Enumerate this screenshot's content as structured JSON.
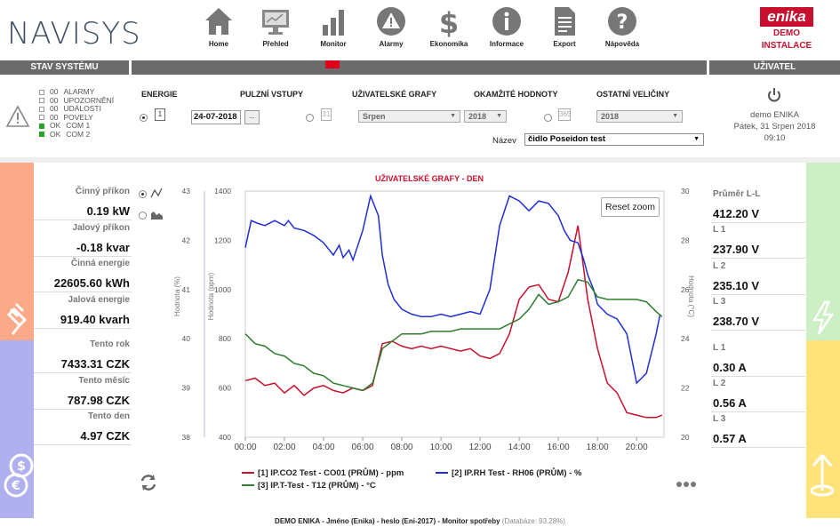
{
  "brand": {
    "logo": "NAVISYS",
    "badge": "enika",
    "demo_line1": "DEMO",
    "demo_line2": "INSTALACE"
  },
  "nav": [
    {
      "label": "Home",
      "icon": "home-icon"
    },
    {
      "label": "Přehled",
      "icon": "monitor-screen-icon"
    },
    {
      "label": "Monitor",
      "icon": "bar-chart-icon"
    },
    {
      "label": "Alarmy",
      "icon": "alarm-warning-icon"
    },
    {
      "label": "Ekonomika",
      "icon": "dollar-icon"
    },
    {
      "label": "Informace",
      "icon": "info-icon"
    },
    {
      "label": "Export",
      "icon": "document-icon"
    },
    {
      "label": "Nápověda",
      "icon": "help-icon"
    }
  ],
  "headers": {
    "system": "STAV SYSTÉMU",
    "user": "UŽIVATEL"
  },
  "status": [
    {
      "state": "00",
      "label": "ALARMY",
      "on": false
    },
    {
      "state": "00",
      "label": "UPOZORNĚNÍ",
      "on": false
    },
    {
      "state": "00",
      "label": "UDÁLOSTI",
      "on": false
    },
    {
      "state": "00",
      "label": "POVELY",
      "on": false
    },
    {
      "state": "OK",
      "label": "COM 1",
      "on": true
    },
    {
      "state": "OK",
      "label": "COM 2",
      "on": true
    }
  ],
  "controls": {
    "h_energie": "ENERGIE",
    "h_pulzni": "PULZNÍ VSTUPY",
    "h_uziv": "UŽIVATELSKÉ GRAFY",
    "h_okamzite": "OKAMŽITÉ HODNOTY",
    "h_ostatni": "OSTATNÍ VELIČINY",
    "cal_day": "1",
    "cal_month": "31",
    "cal_year": "365",
    "date": "24-07-2018",
    "date_btn": "...",
    "month": "Srpen",
    "year1": "2018",
    "year2": "2018",
    "nazev_label": "Název",
    "nazev_value": "čidlo Poseidon test"
  },
  "user": {
    "name": "demo ENIKA",
    "date": "Pátek, 31 Srpen 2018",
    "time": "09:10"
  },
  "left_panel": [
    {
      "label": "Činný příkon",
      "value": "0.19 kW"
    },
    {
      "label": "Jalový příkon",
      "value": "-0.18 kvar"
    },
    {
      "label": "Činná energie",
      "value": "22605.60 kWh"
    },
    {
      "label": "Jalová energie",
      "value": "919.40 kvarh"
    },
    {
      "label": "Tento rok",
      "value": "7433.31 CZK"
    },
    {
      "label": "Tento měsíc",
      "value": "787.98 CZK"
    },
    {
      "label": "Tento den",
      "value": "4.97 CZK"
    }
  ],
  "right_panel": [
    {
      "label": "Průměr L-L",
      "value": "412.20 V"
    },
    {
      "label": "L 1",
      "value": "237.90 V"
    },
    {
      "label": "L 2",
      "value": "235.10 V"
    },
    {
      "label": "L 3",
      "value": "238.70 V"
    },
    {
      "label": "L 1",
      "value": "0.30 A"
    },
    {
      "label": "L 2",
      "value": "0.56 A"
    },
    {
      "label": "L 3",
      "value": "0.57 A"
    }
  ],
  "colors": {
    "orange": "#fca98a",
    "lavender": "#b0b0ee",
    "green": "#ccefc4",
    "yellow": "#ffe27a",
    "red": "#c8102e",
    "blue": "#1f2fd6",
    "dkgreen": "#2f7d2f"
  },
  "chart_data": {
    "type": "line",
    "title": "UŽIVATELSKÉ GRAFY - DEN",
    "reset_label": "Reset zoom",
    "x_ticks": [
      "00:00",
      "02:00",
      "04:00",
      "06:00",
      "08:00",
      "10:00",
      "12:00",
      "14:00",
      "16:00",
      "18:00",
      "20:00"
    ],
    "xlim": [
      0,
      21.4
    ],
    "axes": {
      "hodnota": {
        "label": "Hodnota (%)",
        "ticks": [
          "38",
          "39",
          "40",
          "41",
          "42",
          "43"
        ],
        "range": [
          38,
          43
        ]
      },
      "ppm": {
        "label": "Hodnota (ppm)",
        "ticks": [
          "400",
          "600",
          "800",
          "1000",
          "1200",
          "1400"
        ],
        "range": [
          400,
          1400
        ]
      },
      "c": {
        "label": "Hodnota (°C)",
        "ticks": [
          "20",
          "22",
          "24",
          "26",
          "28",
          "30"
        ],
        "range": [
          20,
          30
        ]
      }
    },
    "series": [
      {
        "name": "[1] IP.CO2 Test - CO01 (PRŮM) - ppm",
        "color": "#c8102e",
        "axis": "ppm",
        "x": [
          0,
          0.5,
          1,
          1.5,
          2,
          2.5,
          3,
          3.5,
          4,
          4.5,
          5,
          5.5,
          6,
          6.5,
          7,
          7.5,
          8,
          8.5,
          9,
          9.5,
          10,
          10.5,
          11,
          11.5,
          12,
          12.5,
          13,
          13.5,
          14,
          14.5,
          15,
          15.5,
          16,
          16.5,
          17,
          17.5,
          18,
          18.5,
          19,
          19.5,
          20,
          20.5,
          21,
          21.3
        ],
        "y": [
          630,
          640,
          610,
          620,
          580,
          610,
          570,
          600,
          610,
          590,
          580,
          600,
          590,
          610,
          780,
          790,
          770,
          760,
          770,
          760,
          770,
          760,
          750,
          760,
          730,
          720,
          740,
          820,
          960,
          1010,
          1020,
          960,
          950,
          1070,
          1260,
          960,
          760,
          620,
          580,
          500,
          490,
          480,
          480,
          490
        ]
      },
      {
        "name": "[2] IP.RH Test - RH06 (PRŮM) - %",
        "color": "#1f2fd6",
        "axis": "hodnota",
        "x": [
          0,
          0.3,
          0.6,
          1,
          1.5,
          2,
          2.2,
          2.5,
          3,
          3.5,
          4,
          4.5,
          4.8,
          5,
          5.3,
          5.5,
          6,
          6.4,
          6.8,
          7,
          7.3,
          7.6,
          8,
          8.5,
          9,
          9.5,
          10,
          10.5,
          11,
          11.5,
          12,
          12.5,
          13,
          13.5,
          14,
          14.5,
          15,
          15.5,
          16,
          16.3,
          16.6,
          17,
          17.3,
          17.5,
          17.8,
          18,
          18.5,
          19,
          19.5,
          19.8,
          20,
          20.5,
          21,
          21.2
        ],
        "y": [
          41.85,
          42.4,
          42.35,
          42.3,
          42.4,
          42.3,
          42.4,
          42.25,
          42.2,
          42.1,
          41.95,
          41.7,
          41.9,
          41.65,
          41.8,
          41.6,
          42.2,
          42.9,
          42.5,
          41.7,
          41.1,
          40.8,
          40.6,
          40.5,
          40.45,
          40.45,
          40.5,
          40.45,
          40.5,
          40.55,
          40.5,
          41.0,
          42.3,
          42.9,
          42.8,
          42.6,
          42.8,
          42.75,
          42.5,
          42.2,
          42.0,
          41.95,
          41.6,
          41.3,
          41.0,
          40.7,
          40.5,
          40.4,
          40.1,
          39.5,
          39.1,
          39.3,
          40.1,
          40.5
        ]
      },
      {
        "name": "[3] IP.T-Test - T12 (PRŮM) - °C",
        "color": "#2f7d2f",
        "axis": "c",
        "x": [
          0,
          0.5,
          1,
          1.5,
          2,
          2.5,
          3,
          3.5,
          4,
          4.5,
          5,
          5.5,
          6,
          6.5,
          7,
          7.5,
          8,
          8.5,
          9,
          9.5,
          10,
          10.5,
          11,
          11.5,
          12,
          12.5,
          13,
          13.5,
          14,
          14.5,
          15,
          15.5,
          16,
          16.5,
          17,
          17.5,
          18,
          18.5,
          19,
          19.5,
          20,
          20.5,
          21,
          21.3
        ],
        "y": [
          24.2,
          23.8,
          23.7,
          23.4,
          23.3,
          23.0,
          22.9,
          22.6,
          22.5,
          22.2,
          22.1,
          22.0,
          21.9,
          22.2,
          23.6,
          23.9,
          24.2,
          24.2,
          24.2,
          24.3,
          24.3,
          24.3,
          24.4,
          24.4,
          24.4,
          24.4,
          24.4,
          24.6,
          24.8,
          25.2,
          25.8,
          25.4,
          25.5,
          25.7,
          26.4,
          26.3,
          25.7,
          25.6,
          25.6,
          25.6,
          25.6,
          25.5,
          25.1,
          24.9
        ]
      }
    ]
  },
  "footer": {
    "text": "DEMO ENIKA - Jméno (Enika) - heslo (Eni-2017) - Monitor spotřeby",
    "db": "(Databáze: 93.28%)"
  }
}
